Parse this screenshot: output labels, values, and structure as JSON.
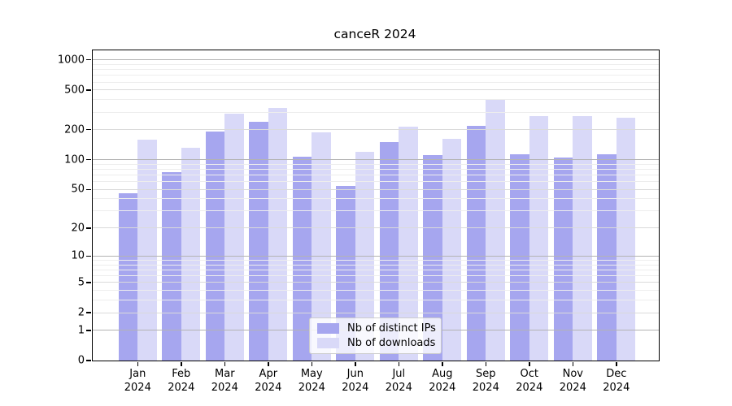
{
  "title": "canceR 2024",
  "chart_data": {
    "type": "bar",
    "title": "canceR 2024",
    "categories": [
      "Jan 2024",
      "Feb 2024",
      "Mar 2024",
      "Apr 2024",
      "May 2024",
      "Jun 2024",
      "Jul 2024",
      "Aug 2024",
      "Sep 2024",
      "Oct 2024",
      "Nov 2024",
      "Dec 2024"
    ],
    "series": [
      {
        "name": "Nb of distinct IPs",
        "color": "#a6a6ef",
        "values": [
          46,
          75,
          190,
          238,
          107,
          54,
          150,
          112,
          220,
          114,
          105,
          113
        ]
      },
      {
        "name": "Nb of downloads",
        "color": "#d9d9f8",
        "values": [
          158,
          131,
          292,
          330,
          188,
          120,
          213,
          161,
          399,
          276,
          274,
          263
        ]
      }
    ],
    "y_axis": {
      "scale": "log1p",
      "ticks": [
        1000,
        500,
        200,
        100,
        50,
        20,
        10,
        5,
        2,
        1,
        0
      ],
      "range": [
        0,
        1255
      ]
    },
    "grid": {
      "major_values": [
        1,
        10,
        100,
        1000
      ],
      "mid_values": [
        2,
        5,
        20,
        50,
        200,
        500
      ],
      "minor_values": [
        3,
        4,
        6,
        7,
        8,
        9,
        30,
        40,
        60,
        70,
        80,
        90,
        300,
        400,
        600,
        700,
        800,
        900
      ]
    },
    "legend": {
      "position": "bottom-center"
    },
    "colors": {
      "bar_distinct_ips": "#a6a6ef",
      "bar_downloads": "#d9d9f8",
      "grid_major": "#b3b3b3",
      "grid_mid": "#dadada",
      "grid_minor": "#ededed",
      "spine": "#000000",
      "text": "#000000",
      "legend_border": "#cccccc"
    }
  }
}
